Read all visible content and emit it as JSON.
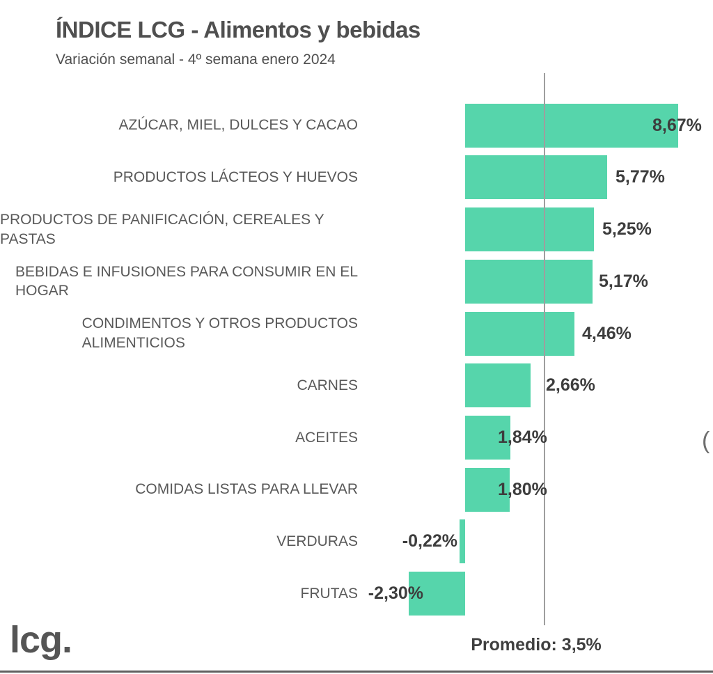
{
  "header": {
    "title": "ÍNDICE LCG - Alimentos y bebidas",
    "subtitle": "Variación semanal - 4º semana enero 2024"
  },
  "chart_data": {
    "type": "bar",
    "orientation": "horizontal",
    "title": "ÍNDICE LCG - Alimentos y bebidas",
    "subtitle": "Variación semanal - 4º semana enero 2024",
    "unit": "%",
    "grid": false,
    "xlim": [
      -4.4,
      10.1
    ],
    "categories": [
      "AZÚCAR, MIEL, DULCES Y CACAO",
      "PRODUCTOS LÁCTEOS Y HUEVOS",
      "PRODUCTOS DE PANIFICACIÓN, CEREALES Y PASTAS",
      "BEBIDAS E INFUSIONES PARA CONSUMIR EN EL\nHOGAR",
      "CONDIMENTOS Y OTROS PRODUCTOS\nALIMENTICIOS",
      "CARNES",
      "ACEITES",
      "COMIDAS LISTAS PARA LLEVAR",
      "VERDURAS",
      "FRUTAS"
    ],
    "values": [
      8.67,
      5.77,
      5.25,
      5.17,
      4.46,
      2.66,
      1.84,
      1.8,
      -0.22,
      -2.3
    ],
    "value_labels": [
      "8,67%",
      "5,77%",
      "5,25%",
      "5,17%",
      "4,46%",
      "2,66%",
      "1,84%",
      "1,80%",
      "-0,22%",
      "-2,30%"
    ],
    "average_line": {
      "label": "Promedio: 3,5%",
      "value": 3.5
    }
  },
  "footer": {
    "logo_text": "lcg."
  },
  "misc": {
    "edge_glyph": "("
  },
  "colors": {
    "bar": "#56d5ab",
    "category_text": "#595959",
    "value_text": "#3d3d3d",
    "title_text": "#4f4f4f",
    "average_line": "#9e9e9e",
    "background": "#ffffff"
  }
}
